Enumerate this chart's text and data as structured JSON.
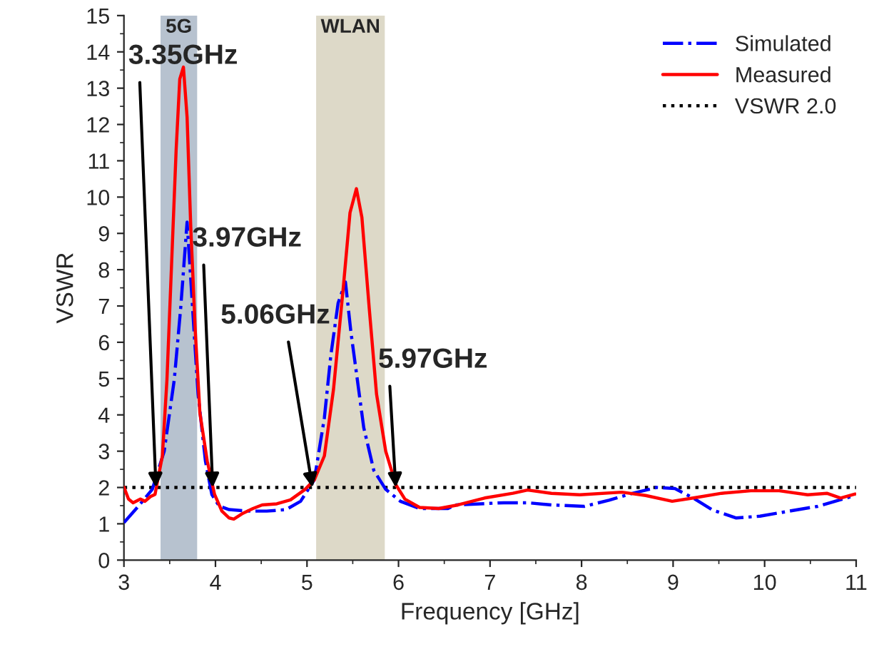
{
  "chart_data": {
    "type": "line",
    "xlabel": "Frequency [GHz]",
    "ylabel": "VSWR",
    "xlim": [
      3,
      11
    ],
    "xticks": [
      3,
      4,
      5,
      6,
      7,
      8,
      9,
      10,
      11
    ],
    "ylim": [
      0,
      15
    ],
    "yticks": [
      0,
      1,
      2,
      3,
      4,
      5,
      6,
      7,
      8,
      9,
      10,
      11,
      12,
      13,
      14,
      15
    ],
    "grid": false,
    "legend": "top right",
    "series": [
      {
        "name": "Simulated",
        "color": "#0000ff",
        "line_style": "dashdot",
        "x": [
          3.0,
          3.16,
          3.31,
          3.44,
          3.55,
          3.62,
          3.69,
          3.74,
          3.81,
          3.89,
          3.96,
          4.04,
          4.15,
          4.35,
          4.56,
          4.77,
          4.93,
          5.08,
          5.19,
          5.26,
          5.34,
          5.42,
          5.48,
          5.55,
          5.62,
          5.73,
          5.86,
          6.02,
          6.23,
          6.54,
          6.63,
          7.15,
          7.41,
          7.67,
          8.03,
          8.3,
          8.56,
          8.82,
          9.02,
          9.22,
          9.43,
          9.69,
          9.95,
          10.27,
          10.58,
          10.99
        ],
        "values": [
          1.03,
          1.49,
          1.95,
          3.0,
          4.97,
          6.94,
          9.31,
          7.34,
          4.57,
          2.73,
          1.81,
          1.49,
          1.39,
          1.35,
          1.35,
          1.39,
          1.62,
          2.21,
          3.92,
          5.63,
          7.08,
          7.66,
          6.28,
          4.97,
          3.65,
          2.47,
          1.95,
          1.62,
          1.42,
          1.42,
          1.52,
          1.58,
          1.58,
          1.52,
          1.48,
          1.65,
          1.84,
          2.0,
          1.97,
          1.71,
          1.38,
          1.16,
          1.21,
          1.35,
          1.48,
          1.78
        ]
      },
      {
        "name": "Measured",
        "color": "#ff0000",
        "line_style": "solid",
        "x": [
          3.0,
          3.05,
          3.1,
          3.18,
          3.23,
          3.29,
          3.34,
          3.36,
          3.42,
          3.47,
          3.52,
          3.57,
          3.61,
          3.65,
          3.69,
          3.73,
          3.78,
          3.83,
          3.91,
          3.99,
          4.07,
          4.15,
          4.2,
          4.3,
          4.41,
          4.51,
          4.67,
          4.82,
          4.98,
          5.08,
          5.19,
          5.29,
          5.4,
          5.47,
          5.54,
          5.6,
          5.68,
          5.76,
          5.86,
          5.97,
          6.07,
          6.23,
          6.44,
          6.65,
          6.94,
          7.25,
          7.41,
          7.67,
          7.98,
          8.44,
          8.7,
          8.99,
          9.22,
          9.53,
          9.85,
          10.16,
          10.47,
          10.68,
          10.83,
          10.99
        ],
        "values": [
          2.01,
          1.68,
          1.58,
          1.68,
          1.62,
          1.75,
          1.81,
          2.08,
          2.87,
          4.97,
          8.12,
          11.28,
          13.25,
          13.58,
          12.2,
          9.18,
          6.28,
          4.05,
          2.73,
          1.81,
          1.35,
          1.16,
          1.13,
          1.29,
          1.42,
          1.52,
          1.55,
          1.66,
          1.95,
          2.21,
          2.87,
          4.71,
          7.6,
          9.57,
          10.23,
          9.44,
          6.94,
          4.57,
          3.0,
          2.08,
          1.68,
          1.45,
          1.42,
          1.52,
          1.71,
          1.84,
          1.93,
          1.84,
          1.8,
          1.87,
          1.78,
          1.62,
          1.71,
          1.84,
          1.91,
          1.91,
          1.8,
          1.84,
          1.71,
          1.82
        ]
      }
    ],
    "ref_lines": [
      {
        "axis": "y",
        "value": 2,
        "label": "VSWR 2.0",
        "color": "#000000",
        "line_style": "dotted"
      }
    ],
    "bands": [
      {
        "axis": "x",
        "from": 3.4,
        "to": 3.8,
        "label": "5G",
        "color": "#b7c2cf"
      },
      {
        "axis": "x",
        "from": 5.1,
        "to": 5.85,
        "label": "WLAN",
        "color": "#ddd9c8"
      }
    ],
    "annotations": [
      {
        "text": "3.35GHz",
        "x": 3.35,
        "y": 2
      },
      {
        "text": "3.97GHz",
        "x": 3.97,
        "y": 2
      },
      {
        "text": "5.06GHz",
        "x": 5.06,
        "y": 2
      },
      {
        "text": "5.97GHz",
        "x": 5.97,
        "y": 2
      }
    ]
  }
}
